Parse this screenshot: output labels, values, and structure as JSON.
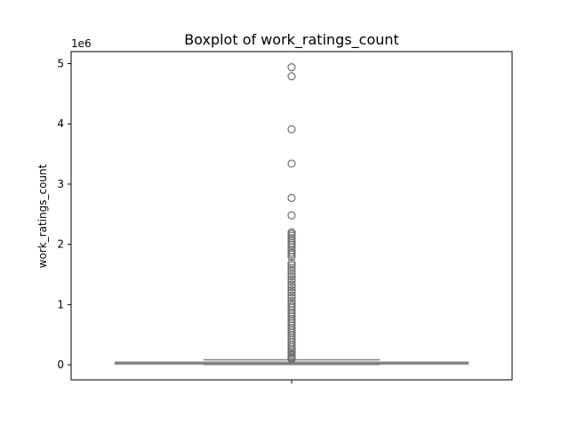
{
  "chart_data": {
    "type": "box",
    "title": "Boxplot of work_ratings_count",
    "xlabel": "",
    "ylabel": "work_ratings_count",
    "y_offset_label": "1e6",
    "ylim": [
      -250000,
      5200000
    ],
    "yticks": [
      0,
      1000000,
      2000000,
      3000000,
      4000000,
      5000000
    ],
    "ytick_labels": [
      "0",
      "1",
      "2",
      "3",
      "4",
      "5"
    ],
    "box": {
      "q1": 15000,
      "median": 24000,
      "q3": 42000,
      "whisker_low": 5000,
      "whisker_high": 82000
    },
    "outliers": [
      4940000,
      4790000,
      3910000,
      3340000,
      2770000,
      2480000,
      2200000,
      2170000,
      2140000,
      2100000,
      2060000,
      2020000,
      1990000,
      1950000,
      1900000,
      1860000,
      1830000,
      1790000,
      1690000,
      1650000,
      1610000,
      1560000,
      1510000,
      1470000,
      1420000,
      1380000,
      1330000,
      1290000,
      1240000,
      1200000,
      1150000,
      1110000,
      1060000,
      1020000,
      980000,
      950000,
      910000,
      870000,
      840000,
      800000,
      760000,
      720000,
      690000,
      650000,
      610000,
      570000,
      530000,
      490000,
      450000,
      410000,
      370000,
      330000,
      290000,
      250000,
      220000,
      190000,
      160000,
      130000,
      110000,
      95000
    ],
    "grid": false,
    "colors": {
      "box": "#808080",
      "outlier_edge": "#6e6e6e",
      "axis": "#000000"
    }
  }
}
